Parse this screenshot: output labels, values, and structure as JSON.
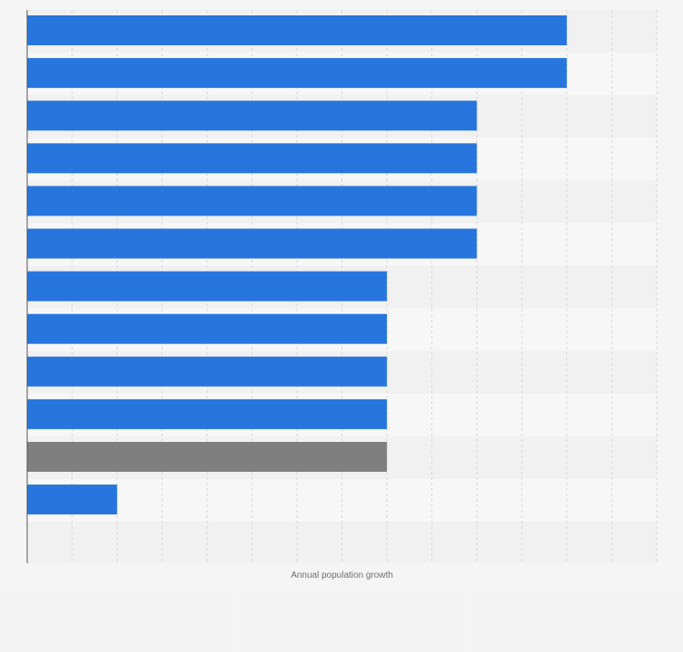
{
  "chart_data": {
    "type": "bar",
    "orientation": "horizontal",
    "xlabel": "Annual population growth",
    "xlim": [
      0,
      7
    ],
    "grid": true,
    "categories": [
      "",
      "",
      "",
      "",
      "",
      "",
      "",
      "",
      "",
      "",
      "",
      ""
    ],
    "values": [
      6,
      6,
      5,
      5,
      5,
      5,
      4,
      4,
      4,
      4,
      4,
      1
    ],
    "highlight_index": 10,
    "colors": {
      "bar": "#2776dd",
      "highlight": "#7f7f7f",
      "band_dark": "#f1f1f1",
      "band_light": "#f7f7f7",
      "grid": "#d9d9d9",
      "axis": "#555555",
      "label": "#6f6f6f"
    }
  }
}
